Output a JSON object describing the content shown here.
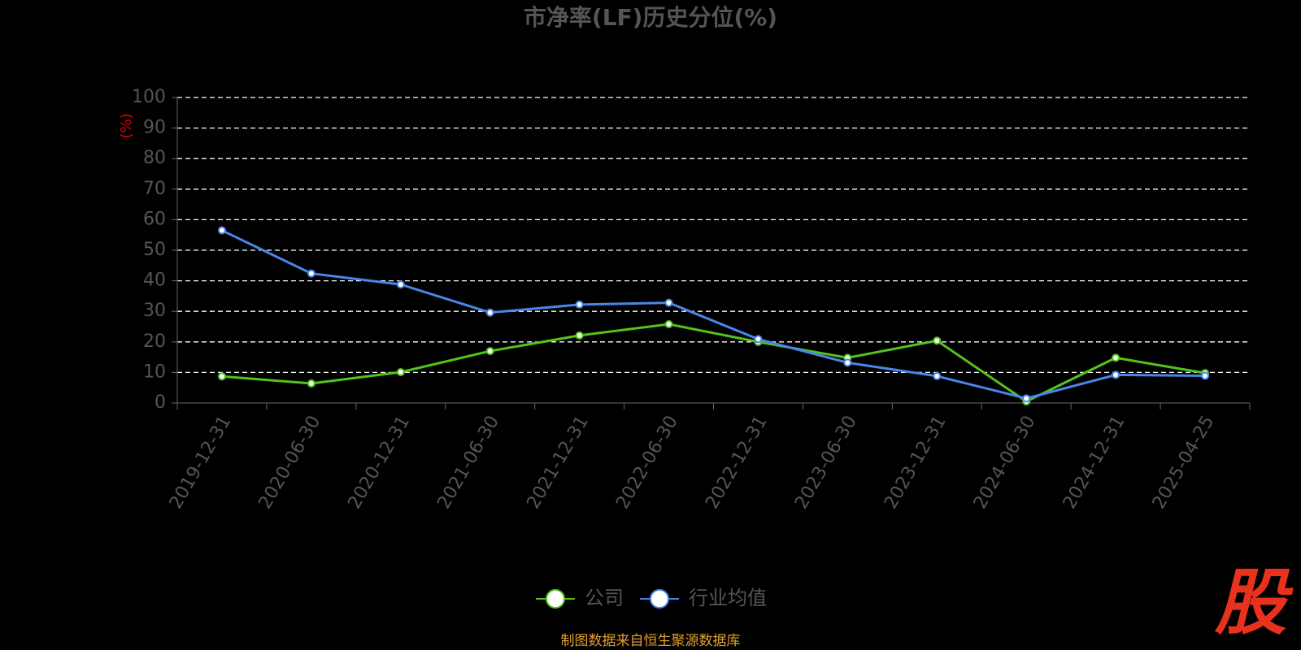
{
  "chart_data": {
    "type": "line",
    "title": "市净率(LF)历史分位(%)",
    "y_label": "(%)",
    "categories": [
      "2019-12-31",
      "2020-06-30",
      "2020-12-31",
      "2021-06-30",
      "2021-12-31",
      "2022-06-30",
      "2022-12-31",
      "2023-06-30",
      "2023-12-31",
      "2024-06-30",
      "2024-12-31",
      "2025-04-25"
    ],
    "series": [
      {
        "name": "公司",
        "color": "#52c41a",
        "values": [
          8.7,
          6.4,
          10.1,
          17.0,
          22.1,
          25.8,
          20.0,
          14.8,
          20.4,
          0.5,
          14.8,
          9.8
        ]
      },
      {
        "name": "行业均值",
        "color": "#4a86e8",
        "values": [
          56.5,
          42.4,
          38.8,
          29.6,
          32.2,
          32.8,
          20.9,
          13.2,
          8.8,
          1.5,
          9.2,
          8.9
        ]
      }
    ],
    "ylim": [
      0,
      100
    ],
    "yticks": [
      0,
      10,
      20,
      30,
      40,
      50,
      60,
      70,
      80,
      90,
      100
    ],
    "grid": true,
    "legend": "bottom",
    "source": "制图数据来自恒生聚源数据库",
    "watermark": "股"
  }
}
